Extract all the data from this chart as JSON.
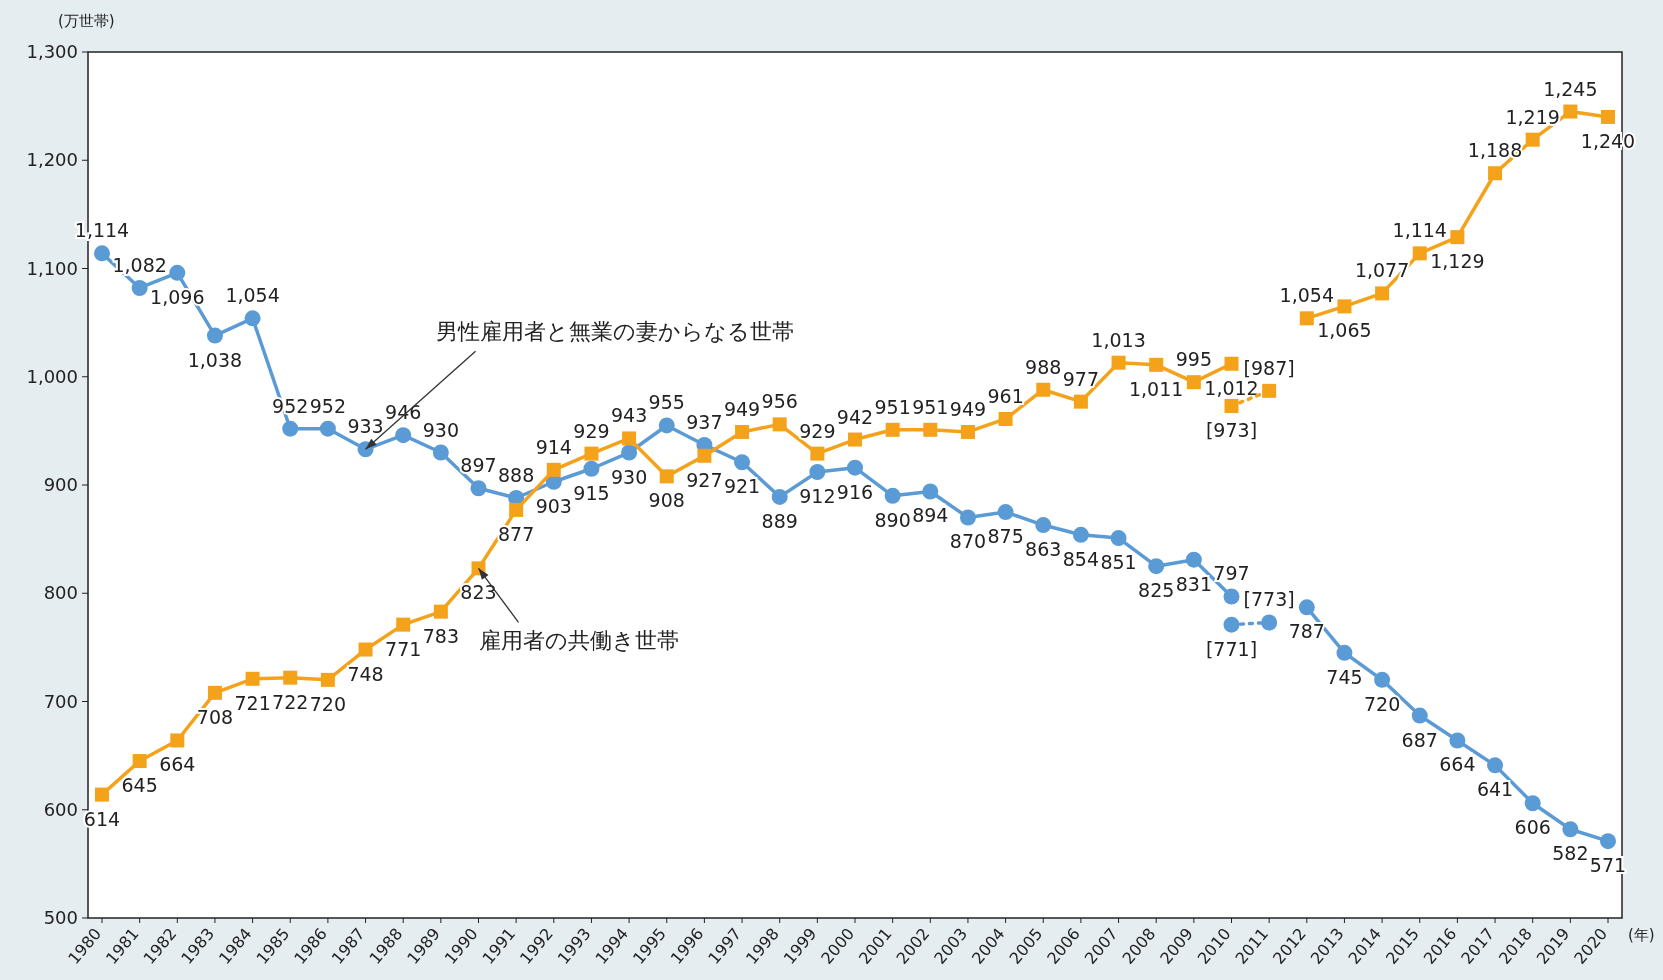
{
  "chart_data": {
    "type": "line",
    "xlabel": "(年)",
    "ylabel": "(万世帯)",
    "categories": [
      "1980",
      "1981",
      "1982",
      "1983",
      "1984",
      "1985",
      "1986",
      "1987",
      "1988",
      "1989",
      "1990",
      "1991",
      "1992",
      "1993",
      "1994",
      "1995",
      "1996",
      "1997",
      "1998",
      "1999",
      "2000",
      "2001",
      "2002",
      "2003",
      "2004",
      "2005",
      "2006",
      "2007",
      "2008",
      "2009",
      "2010",
      "2011",
      "2012",
      "2013",
      "2014",
      "2015",
      "2016",
      "2017",
      "2018",
      "2019",
      "2020"
    ],
    "ylim": [
      500,
      1300
    ],
    "yticks": [
      500,
      600,
      700,
      800,
      900,
      {
        "value": 1000,
        "label": "1,000"
      },
      {
        "value": 1100,
        "label": "1,100"
      },
      {
        "value": 1200,
        "label": "1,200"
      },
      {
        "value": 1300,
        "label": "1,300"
      }
    ],
    "series": [
      {
        "color": "#5b9bd5",
        "marker": "circle",
        "line_style": "solid",
        "values": [
          1114,
          1082,
          1096,
          1038,
          1054,
          952,
          952,
          933,
          946,
          930,
          897,
          888,
          903,
          915,
          930,
          955,
          937,
          921,
          889,
          912,
          916,
          890,
          894,
          870,
          875,
          863,
          854,
          851,
          825,
          831,
          797,
          null,
          787,
          745,
          720,
          687,
          664,
          641,
          606,
          582,
          571
        ],
        "value_labels": [
          "1,114",
          "1,082",
          "1,096",
          "1,038",
          "1,054",
          "952",
          "952",
          "933",
          "946",
          "930",
          "897",
          "888",
          "903",
          "915",
          "930",
          "955",
          "937",
          "921",
          "889",
          "912",
          "916",
          "890",
          "894",
          "870",
          "875",
          "863",
          "854",
          "851",
          "825",
          "831",
          "797",
          null,
          "787",
          "745",
          "720",
          "687",
          "664",
          "641",
          "606",
          "582",
          "571"
        ]
      },
      {
        "color": "#5b9bd5",
        "marker": "circle",
        "line_style": "dotted",
        "values": [
          null,
          null,
          null,
          null,
          null,
          null,
          null,
          null,
          null,
          null,
          null,
          null,
          null,
          null,
          null,
          null,
          null,
          null,
          null,
          null,
          null,
          null,
          null,
          null,
          null,
          null,
          null,
          null,
          null,
          null,
          771,
          773,
          null,
          null,
          null,
          null,
          null,
          null,
          null,
          null,
          null
        ],
        "value_labels": [
          null,
          null,
          null,
          null,
          null,
          null,
          null,
          null,
          null,
          null,
          null,
          null,
          null,
          null,
          null,
          null,
          null,
          null,
          null,
          null,
          null,
          null,
          null,
          null,
          null,
          null,
          null,
          null,
          null,
          null,
          "[771]",
          "[773]",
          null,
          null,
          null,
          null,
          null,
          null,
          null,
          null,
          null
        ]
      },
      {
        "color": "#f5a21b",
        "marker": "square",
        "line_style": "solid",
        "values": [
          614,
          645,
          664,
          708,
          721,
          722,
          720,
          748,
          771,
          783,
          823,
          877,
          914,
          929,
          943,
          908,
          927,
          949,
          956,
          929,
          942,
          951,
          951,
          949,
          961,
          988,
          977,
          1013,
          1011,
          995,
          1012,
          null,
          1054,
          1065,
          1077,
          1114,
          1129,
          1188,
          1219,
          1245,
          1240
        ],
        "value_labels": [
          "614",
          "645",
          "664",
          "708",
          "721",
          "722",
          "720",
          "748",
          "771",
          "783",
          "823",
          "877",
          "914",
          "929",
          "943",
          "908",
          "927",
          "949",
          "956",
          "929",
          "942",
          "951",
          "951",
          "949",
          "961",
          "988",
          "977",
          "1,013",
          "1,011",
          "995",
          "1,012",
          null,
          "1,054",
          "1,065",
          "1,077",
          "1,114",
          "1,129",
          "1,188",
          "1,219",
          "1,245",
          "1,240"
        ]
      },
      {
        "color": "#f5a21b",
        "marker": "square",
        "line_style": "dotted",
        "values": [
          null,
          null,
          null,
          null,
          null,
          null,
          null,
          null,
          null,
          null,
          null,
          null,
          null,
          null,
          null,
          null,
          null,
          null,
          null,
          null,
          null,
          null,
          null,
          null,
          null,
          null,
          null,
          null,
          null,
          null,
          973,
          987,
          null,
          null,
          null,
          null,
          null,
          null,
          null,
          null,
          null
        ],
        "value_labels": [
          null,
          null,
          null,
          null,
          null,
          null,
          null,
          null,
          null,
          null,
          null,
          null,
          null,
          null,
          null,
          null,
          null,
          null,
          null,
          null,
          null,
          null,
          null,
          null,
          null,
          null,
          null,
          null,
          null,
          null,
          "[973]",
          "[987]",
          null,
          null,
          null,
          null,
          null,
          null,
          null,
          null,
          null
        ]
      }
    ],
    "annotations": [
      {
        "text": "男性雇用者と無業の妻からなる世帯",
        "x": "1987",
        "y": 933
      },
      {
        "text": "雇用者の共働き世帯",
        "x": "1990",
        "y": 823
      }
    ]
  }
}
